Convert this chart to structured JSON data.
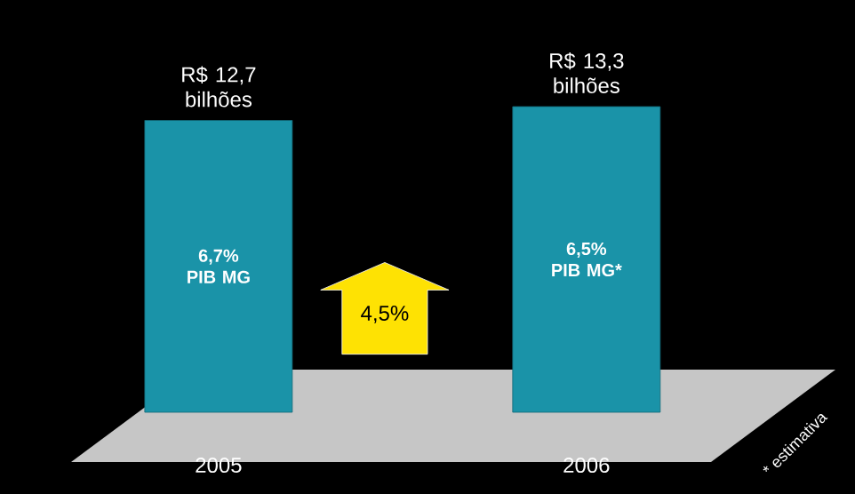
{
  "chart_data": {
    "type": "bar",
    "categories": [
      "2005",
      "2006"
    ],
    "values": [
      12.7,
      13.3
    ],
    "value_labels": [
      "R$ 12,7 bilhões",
      "R$ 13,3 bilhões"
    ],
    "color": "#1a93a8",
    "annotations": [
      "6,7% PIB MG",
      "6,5% PIB MG*",
      "4,5%",
      "* estimativa"
    ]
  }
}
